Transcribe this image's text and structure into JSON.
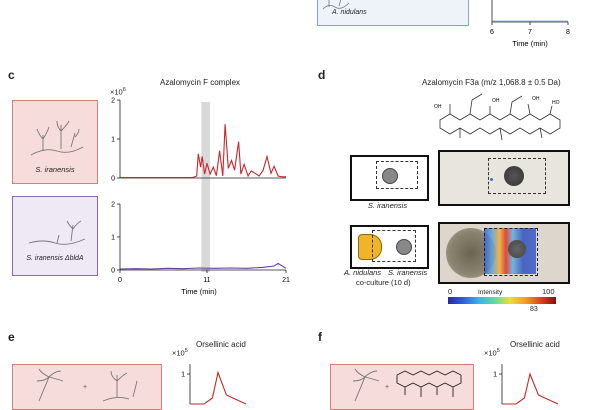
{
  "panel_b": {
    "organism": "A. nidulans",
    "xaxis_label": "Time (min)",
    "ticks": [
      "6",
      "7",
      "8"
    ]
  },
  "panel_c": {
    "letter": "c",
    "title": "Azalomycin F complex",
    "y_exponent": "×10",
    "y_exponent_power": "6",
    "organism_top": "S. iranensis",
    "organism_bottom": "S. iranensis ΔbldA",
    "xaxis_label": "Time (min)",
    "colors": {
      "top": "#c8262a",
      "bottom": "#6a3ea1",
      "highlight": "#d9d9d9",
      "top_box_bg": "#f6dcda",
      "top_box_border": "#d87c79",
      "bottom_box_bg": "#efe8f5",
      "bottom_box_border": "#8a66b8"
    }
  },
  "chart_data": [
    {
      "type": "line",
      "title": "Azalomycin F complex",
      "series_label": "S. iranensis",
      "xlabel": "",
      "ylabel": "",
      "xlim": [
        0,
        21
      ],
      "ylim": [
        0,
        2
      ],
      "yticks": [
        "0",
        "1",
        "2"
      ],
      "x": [
        0,
        9.2,
        9.7,
        9.9,
        10.2,
        10.4,
        10.7,
        11,
        11.4,
        11.8,
        12.2,
        12.6,
        13.0,
        13.3,
        13.7,
        14.1,
        14.5,
        15.0,
        15.3,
        15.7,
        16.2,
        16.6,
        17.1,
        17.6,
        18.1,
        18.6,
        19.1,
        19.5,
        20,
        20.5,
        21
      ],
      "values": [
        0.01,
        0.01,
        0.05,
        0.62,
        0.28,
        0.55,
        0.1,
        0.38,
        0.1,
        0.28,
        0.06,
        0.7,
        0.05,
        1.38,
        0.25,
        0.45,
        0.2,
        0.93,
        0.1,
        0.35,
        0.05,
        0.18,
        0.12,
        0.05,
        0.2,
        0.55,
        0.12,
        0.3,
        0.05,
        0.03,
        0.03
      ]
    },
    {
      "type": "line",
      "series_label": "S. iranensis ΔbldA",
      "xlabel": "Time (min)",
      "ylabel": "",
      "xlim": [
        0,
        21
      ],
      "ylim": [
        0,
        2
      ],
      "yticks": [
        "0",
        "1",
        "2"
      ],
      "xticks": [
        "0",
        "11",
        "21"
      ],
      "x": [
        0,
        2,
        4,
        6,
        8,
        10,
        12,
        14,
        16,
        18,
        19.5,
        20,
        21
      ],
      "values": [
        0.03,
        0.04,
        0.03,
        0.05,
        0.04,
        0.06,
        0.05,
        0.06,
        0.05,
        0.08,
        0.12,
        0.2,
        0.05
      ]
    },
    {
      "type": "line",
      "title": "Orsellinic acid",
      "ylim": [
        0,
        1
      ],
      "yticks": [
        "1"
      ],
      "x": [
        0,
        1,
        1.6,
        2,
        2.6,
        4
      ],
      "values": [
        0,
        0,
        0.2,
        1.05,
        0.3,
        0
      ]
    },
    {
      "type": "line",
      "title": "Orsellinic acid",
      "ylim": [
        0,
        1
      ],
      "yticks": [
        "1"
      ],
      "x": [
        0,
        1,
        1.6,
        2,
        2.6,
        4
      ],
      "values": [
        0,
        0,
        0.2,
        1.0,
        0.3,
        0
      ]
    }
  ],
  "panel_d": {
    "letter": "d",
    "title": "Azalomycin F3a (m/z 1,068.8 ± 0.5 Da)",
    "label_top": "S. iranensis",
    "label_bottom_left": "A. nidulans",
    "label_bottom_right": "S. iranensis",
    "label_coculture": "co-culture (10 d)",
    "colorbar_title": "Intensity",
    "colorbar_min": "0",
    "colorbar_max": "100",
    "colorbar_mark": "83",
    "colors": {
      "nidulans": "#f0b429"
    }
  },
  "panel_e": {
    "letter": "e",
    "title": "Orsellinic acid",
    "y_exponent": "×10",
    "y_exponent_power": "5"
  },
  "panel_f": {
    "letter": "f",
    "title": "Orsellinic acid",
    "y_exponent": "×10",
    "y_exponent_power": "5"
  }
}
